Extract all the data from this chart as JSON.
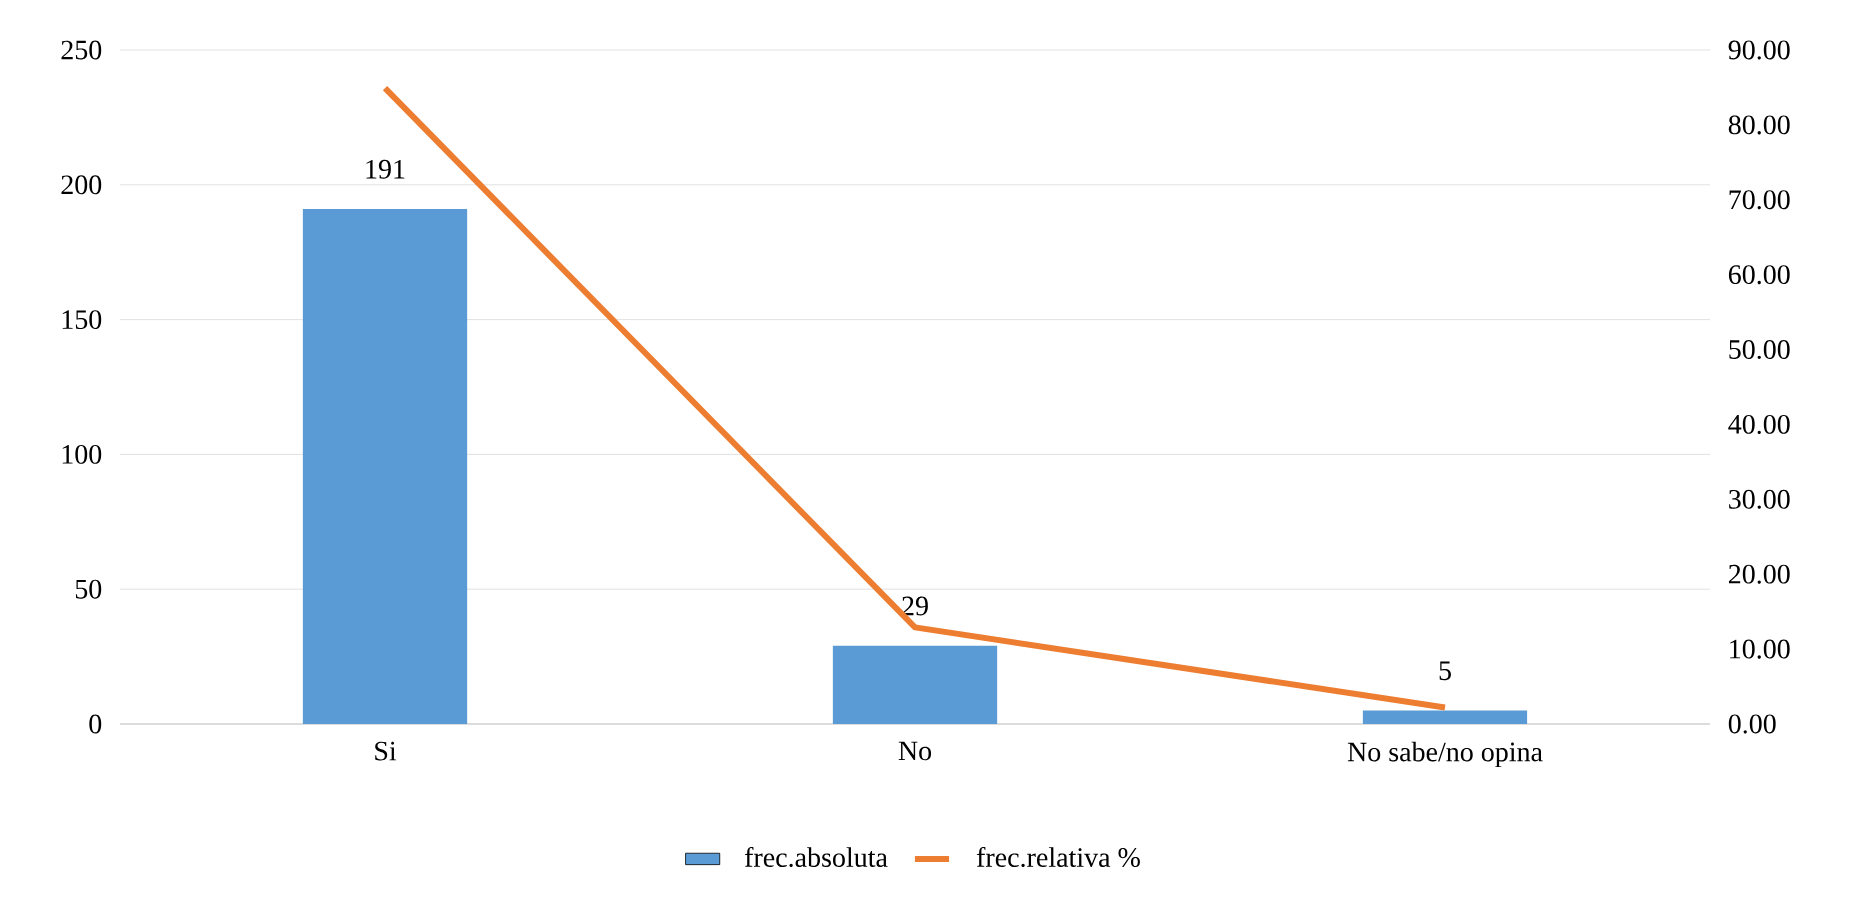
{
  "chart_data": {
    "type": "bar",
    "categories": [
      "Si",
      "No",
      "No sabe/no opina"
    ],
    "series": [
      {
        "name": "frec.absoluta",
        "color": "#5b9bd5",
        "values": [
          191,
          29,
          5
        ],
        "value_labels": [
          "191",
          "29",
          "5"
        ]
      },
      {
        "name": "frec.relativa %",
        "type": "line",
        "axis": "y2",
        "color": "#ed7d31",
        "values": [
          84.9,
          12.9,
          2.2
        ]
      }
    ],
    "ylim": [
      0,
      250
    ],
    "yticks": [
      0,
      50,
      100,
      150,
      200,
      250
    ],
    "y2lim": [
      0,
      90
    ],
    "y2ticks": [
      {
        "value": 0,
        "label": "0.00"
      },
      {
        "value": 10,
        "label": "10.00"
      },
      {
        "value": 20,
        "label": "20.00"
      },
      {
        "value": 30,
        "label": "30.00"
      },
      {
        "value": 40,
        "label": "40.00"
      },
      {
        "value": 50,
        "label": "50.00"
      },
      {
        "value": 60,
        "label": "60.00"
      },
      {
        "value": 70,
        "label": "70.00"
      },
      {
        "value": 80,
        "label": "80.00"
      },
      {
        "value": 90,
        "label": "90.00"
      }
    ],
    "grid": "y",
    "legend": "bottom",
    "marker": "none"
  }
}
